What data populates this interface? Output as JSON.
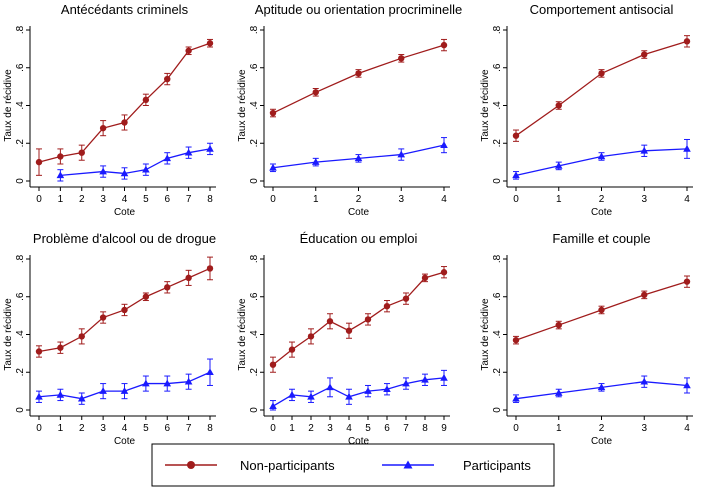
{
  "legend": {
    "items": [
      {
        "label": "Non-participants",
        "color": "#a01c1c",
        "marker": "circle"
      },
      {
        "label": "Participants",
        "color": "#1a1aff",
        "marker": "triangle"
      }
    ],
    "placement": "bottom-center"
  },
  "chart_data": [
    {
      "type": "line",
      "title": "Antécédants criminels",
      "xlabel": "Cote",
      "ylabel": "Taux de récidive",
      "x": [
        0,
        1,
        2,
        3,
        4,
        5,
        6,
        7,
        8
      ],
      "xticks": [
        "0",
        "1",
        "2",
        "3",
        "4",
        "5",
        "6",
        "7",
        "8"
      ],
      "ylim": [
        0,
        0.8
      ],
      "yticks": [
        "0",
        ".2",
        ".4",
        ".6",
        ".8"
      ],
      "series": [
        {
          "name": "Non-participants",
          "x": [
            0,
            1,
            2,
            3,
            4,
            5,
            6,
            7,
            8
          ],
          "values": [
            0.1,
            0.13,
            0.15,
            0.28,
            0.31,
            0.43,
            0.54,
            0.69,
            0.73
          ],
          "err": [
            0.07,
            0.04,
            0.04,
            0.04,
            0.04,
            0.03,
            0.03,
            0.02,
            0.02
          ]
        },
        {
          "name": "Participants",
          "x": [
            1,
            3,
            4,
            5,
            6,
            7,
            8
          ],
          "values": [
            0.03,
            0.05,
            0.04,
            0.06,
            0.12,
            0.15,
            0.17
          ],
          "err": [
            0.03,
            0.03,
            0.03,
            0.03,
            0.03,
            0.03,
            0.03
          ]
        }
      ]
    },
    {
      "type": "line",
      "title": "Aptitude ou orientation procriminelle",
      "xlabel": "Cote",
      "ylabel": "Taux de récidive",
      "x": [
        0,
        1,
        2,
        3,
        4
      ],
      "xticks": [
        "0",
        "1",
        "2",
        "3",
        "4"
      ],
      "ylim": [
        0,
        0.8
      ],
      "yticks": [
        "0",
        ".2",
        ".4",
        ".6",
        ".8"
      ],
      "series": [
        {
          "name": "Non-participants",
          "x": [
            0,
            1,
            2,
            3,
            4
          ],
          "values": [
            0.36,
            0.47,
            0.57,
            0.65,
            0.72
          ],
          "err": [
            0.02,
            0.02,
            0.02,
            0.02,
            0.03
          ]
        },
        {
          "name": "Participants",
          "x": [
            0,
            1,
            2,
            3,
            4
          ],
          "values": [
            0.07,
            0.1,
            0.12,
            0.14,
            0.19
          ],
          "err": [
            0.02,
            0.02,
            0.02,
            0.03,
            0.04
          ]
        }
      ]
    },
    {
      "type": "line",
      "title": "Comportement antisocial",
      "xlabel": "Cote",
      "ylabel": "Taux de récidive",
      "x": [
        0,
        1,
        2,
        3,
        4
      ],
      "xticks": [
        "0",
        "1",
        "2",
        "3",
        "4"
      ],
      "ylim": [
        0,
        0.8
      ],
      "yticks": [
        "0",
        ".2",
        ".4",
        ".6",
        ".8"
      ],
      "series": [
        {
          "name": "Non-participants",
          "x": [
            0,
            1,
            2,
            3,
            4
          ],
          "values": [
            0.24,
            0.4,
            0.57,
            0.67,
            0.74
          ],
          "err": [
            0.03,
            0.02,
            0.02,
            0.02,
            0.03
          ]
        },
        {
          "name": "Participants",
          "x": [
            0,
            1,
            2,
            3,
            4
          ],
          "values": [
            0.03,
            0.08,
            0.13,
            0.16,
            0.17
          ],
          "err": [
            0.02,
            0.02,
            0.02,
            0.03,
            0.05
          ]
        }
      ]
    },
    {
      "type": "line",
      "title": "Problème d'alcool ou de drogue",
      "xlabel": "Cote",
      "ylabel": "Taux de récidive",
      "x": [
        0,
        1,
        2,
        3,
        4,
        5,
        6,
        7,
        8
      ],
      "xticks": [
        "0",
        "1",
        "2",
        "3",
        "4",
        "5",
        "6",
        "7",
        "8"
      ],
      "ylim": [
        0,
        0.8
      ],
      "yticks": [
        "0",
        ".2",
        ".4",
        ".6",
        ".8"
      ],
      "series": [
        {
          "name": "Non-participants",
          "x": [
            0,
            1,
            2,
            3,
            4,
            5,
            6,
            7,
            8
          ],
          "values": [
            0.31,
            0.33,
            0.39,
            0.49,
            0.53,
            0.6,
            0.65,
            0.7,
            0.75
          ],
          "err": [
            0.03,
            0.03,
            0.04,
            0.03,
            0.03,
            0.02,
            0.03,
            0.04,
            0.06
          ]
        },
        {
          "name": "Participants",
          "x": [
            0,
            1,
            2,
            3,
            4,
            5,
            6,
            7,
            8
          ],
          "values": [
            0.07,
            0.08,
            0.06,
            0.1,
            0.1,
            0.14,
            0.14,
            0.15,
            0.2
          ],
          "err": [
            0.03,
            0.03,
            0.03,
            0.04,
            0.04,
            0.04,
            0.04,
            0.04,
            0.07
          ]
        }
      ]
    },
    {
      "type": "line",
      "title": "Éducation ou emploi",
      "xlabel": "Cote",
      "ylabel": "Taux de récidive",
      "x": [
        0,
        1,
        2,
        3,
        4,
        5,
        6,
        7,
        8,
        9
      ],
      "xticks": [
        "0",
        "1",
        "2",
        "3",
        "4",
        "5",
        "6",
        "7",
        "8",
        "9"
      ],
      "ylim": [
        0,
        0.8
      ],
      "yticks": [
        "0",
        ".2",
        ".4",
        ".6",
        ".8"
      ],
      "series": [
        {
          "name": "Non-participants",
          "x": [
            0,
            1,
            2,
            3,
            4,
            5,
            6,
            7,
            8,
            9
          ],
          "values": [
            0.24,
            0.32,
            0.39,
            0.47,
            0.42,
            0.48,
            0.55,
            0.59,
            0.7,
            0.73
          ],
          "err": [
            0.04,
            0.04,
            0.04,
            0.04,
            0.04,
            0.03,
            0.03,
            0.03,
            0.02,
            0.03
          ]
        },
        {
          "name": "Participants",
          "x": [
            0,
            1,
            2,
            3,
            4,
            5,
            6,
            7,
            8,
            9
          ],
          "values": [
            0.02,
            0.08,
            0.07,
            0.12,
            0.07,
            0.1,
            0.11,
            0.14,
            0.16,
            0.17
          ],
          "err": [
            0.03,
            0.03,
            0.03,
            0.05,
            0.04,
            0.03,
            0.03,
            0.03,
            0.03,
            0.04
          ]
        }
      ]
    },
    {
      "type": "line",
      "title": "Famille et couple",
      "xlabel": "Cote",
      "ylabel": "Taux de récidive",
      "x": [
        0,
        1,
        2,
        3,
        4
      ],
      "xticks": [
        "0",
        "1",
        "2",
        "3",
        "4"
      ],
      "ylim": [
        0,
        0.8
      ],
      "yticks": [
        "0",
        ".2",
        ".4",
        ".6",
        ".8"
      ],
      "series": [
        {
          "name": "Non-participants",
          "x": [
            0,
            1,
            2,
            3,
            4
          ],
          "values": [
            0.37,
            0.45,
            0.53,
            0.61,
            0.68
          ],
          "err": [
            0.02,
            0.02,
            0.02,
            0.02,
            0.03
          ]
        },
        {
          "name": "Participants",
          "x": [
            0,
            1,
            2,
            3,
            4
          ],
          "values": [
            0.06,
            0.09,
            0.12,
            0.15,
            0.13
          ],
          "err": [
            0.02,
            0.02,
            0.02,
            0.03,
            0.04
          ]
        }
      ]
    }
  ]
}
